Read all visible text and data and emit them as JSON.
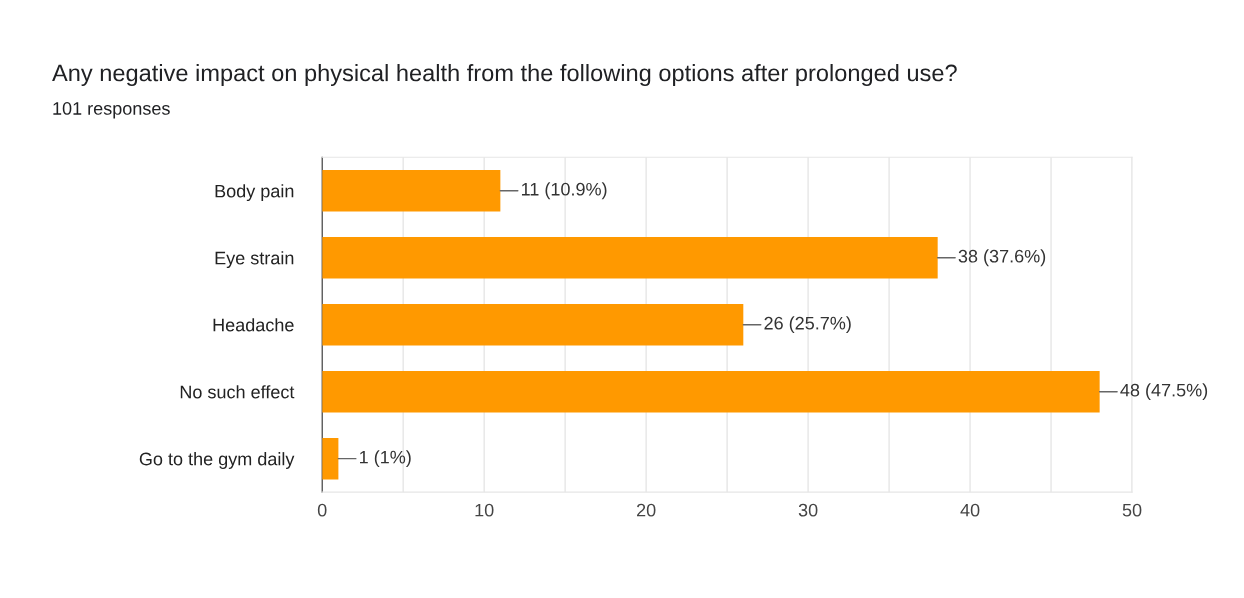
{
  "chart_data": {
    "type": "bar",
    "orientation": "horizontal",
    "title": "Any negative impact on physical health from the following options after prolonged use?",
    "subtitle": "101 responses",
    "categories": [
      "Body pain",
      "Eye strain",
      "Headache",
      "No such effect",
      "Go to the gym daily"
    ],
    "values": [
      11,
      38,
      26,
      48,
      1
    ],
    "value_labels": [
      "11 (10.9%)",
      "38 (37.6%)",
      "26 (25.7%)",
      "48 (47.5%)",
      "1 (1%)"
    ],
    "color": "#ff9900",
    "xlim": [
      0,
      50
    ],
    "xticks": [
      0,
      {
        "value": 5,
        "label": null
      },
      10,
      {
        "value": 15,
        "label": null
      },
      20,
      {
        "value": 25,
        "label": null
      },
      30,
      {
        "value": 35,
        "label": null
      },
      40,
      {
        "value": 45,
        "label": null
      },
      50
    ],
    "grid": "x",
    "legend": false
  }
}
